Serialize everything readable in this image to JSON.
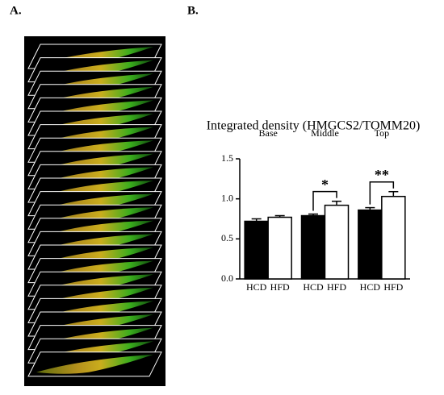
{
  "panel_labels": [
    "A.",
    "B."
  ],
  "chart_data": {
    "type": "bar",
    "title": "Integrated density (HMGCS2/TOMM20)",
    "categories": [
      "Base",
      "Middle",
      "Top"
    ],
    "series": [
      {
        "name": "HCD",
        "color": "#000000",
        "values": [
          0.72,
          0.79,
          0.86
        ],
        "errors": [
          0.03,
          0.02,
          0.03
        ]
      },
      {
        "name": "HFD",
        "color": "#ffffff",
        "values": [
          0.77,
          0.92,
          1.03
        ],
        "errors": [
          0.02,
          0.05,
          0.06
        ]
      }
    ],
    "ylim": [
      0,
      1.5
    ],
    "yticks": [
      {
        "value": 0,
        "label": "0.0"
      },
      0.5,
      {
        "value": 1,
        "label": "1.0"
      },
      1.5
    ],
    "annotations": [
      {
        "text": "*",
        "category": "Middle"
      },
      {
        "text": "**",
        "category": "Top"
      }
    ]
  }
}
